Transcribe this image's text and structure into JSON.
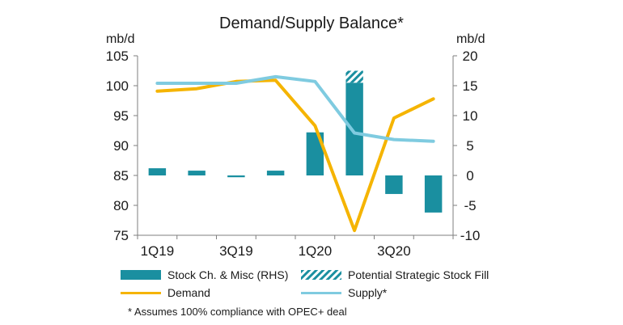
{
  "chart_data": {
    "type": "bar",
    "title": "Demand/Supply Balance*",
    "y_left_unit": "mb/d",
    "y_right_unit": "mb/d",
    "y_left_ticks": [
      75,
      80,
      85,
      90,
      95,
      100,
      105
    ],
    "y_right_ticks": [
      -10,
      -5,
      0,
      5,
      10,
      15,
      20
    ],
    "ylim_left": [
      75,
      105
    ],
    "ylim_right": [
      -10,
      20
    ],
    "x_tick_labels": [
      "1Q19",
      "3Q19",
      "1Q20",
      "3Q20"
    ],
    "categories": [
      "1Q19",
      "2Q19",
      "3Q19",
      "4Q19",
      "1Q20",
      "2Q20",
      "3Q20",
      "4Q20"
    ],
    "series": [
      {
        "name": "Stock Ch. & Misc (RHS)",
        "type": "bar",
        "axis": "right",
        "color": "#1a8fa0",
        "values": [
          1.2,
          0.8,
          -0.3,
          0.8,
          7.2,
          15.5,
          -3.1,
          -6.2
        ]
      },
      {
        "name": "Potential Strategic Stock Fill",
        "type": "bar-stacked",
        "axis": "right",
        "color": "#1a8fa0",
        "values": [
          0,
          0,
          0,
          0,
          0,
          2.0,
          0,
          0
        ]
      },
      {
        "name": "Demand",
        "type": "line",
        "axis": "left",
        "color": "#f5b400",
        "values": [
          99.1,
          99.5,
          100.7,
          100.9,
          93.3,
          75.8,
          94.6,
          97.8
        ]
      },
      {
        "name": "Supply*",
        "type": "line",
        "axis": "left",
        "color": "#7fcbe0",
        "values": [
          100.4,
          100.4,
          100.4,
          101.5,
          100.7,
          92.1,
          91.0,
          90.7
        ]
      }
    ],
    "legend": [
      "Stock Ch. & Misc (RHS)",
      "Potential Strategic Stock Fill",
      "Demand",
      "Supply*"
    ],
    "legend_placement": "bottom",
    "grid": false,
    "footnote": "* Assumes 100% compliance with OPEC+ deal"
  }
}
